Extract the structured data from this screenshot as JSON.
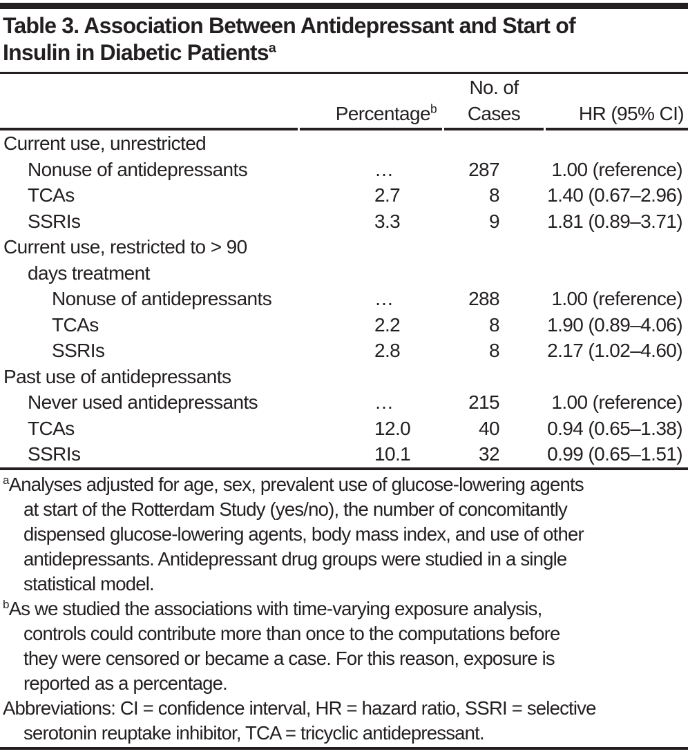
{
  "page": {
    "background": "#ffffff",
    "text_color": "#231f20",
    "rule_color": "#231f20"
  },
  "title": {
    "line1": "Table 3. Association Between Antidepressant and Start of",
    "line2": "Insulin in Diabetic Patients",
    "superscript": "a"
  },
  "table": {
    "header": {
      "percentage_label": "Percentage",
      "percentage_superscript": "b",
      "cases_label_line1": "No. of",
      "cases_label_line2": "Cases",
      "hr_label": "HR (95% CI)"
    },
    "rows": [
      {
        "label": "Current use, unrestricted",
        "indent": 0,
        "percentage": "",
        "cases": "",
        "hr": ""
      },
      {
        "label": "Nonuse of antidepressants",
        "indent": 1,
        "percentage": "…",
        "cases": "287",
        "hr": "1.00 (reference)"
      },
      {
        "label": "TCAs",
        "indent": 1,
        "percentage": "2.7",
        "cases": "8",
        "hr": "1.40 (0.67–2.96)"
      },
      {
        "label": "SSRIs",
        "indent": 1,
        "percentage": "3.3",
        "cases": "9",
        "hr": "1.81 (0.89–3.71)"
      },
      {
        "label": "Current use, restricted to > 90",
        "indent": 0,
        "percentage": "",
        "cases": "",
        "hr": ""
      },
      {
        "label": "days treatment",
        "indent": 1,
        "percentage": "",
        "cases": "",
        "hr": ""
      },
      {
        "label": "Nonuse of antidepressants",
        "indent": 2,
        "percentage": "…",
        "cases": "288",
        "hr": "1.00 (reference)"
      },
      {
        "label": "TCAs",
        "indent": 2,
        "percentage": "2.2",
        "cases": "8",
        "hr": "1.90 (0.89–4.06)"
      },
      {
        "label": "SSRIs",
        "indent": 2,
        "percentage": "2.8",
        "cases": "8",
        "hr": "2.17 (1.02–4.60)"
      },
      {
        "label": "Past use of antidepressants",
        "indent": 0,
        "percentage": "",
        "cases": "",
        "hr": ""
      },
      {
        "label": "Never used antidepressants",
        "indent": 1,
        "percentage": "…",
        "cases": "215",
        "hr": "1.00 (reference)"
      },
      {
        "label": "TCAs",
        "indent": 1,
        "percentage": "12.0",
        "cases": "40",
        "hr": "0.94 (0.65–1.38)"
      },
      {
        "label": "SSRIs",
        "indent": 1,
        "percentage": "10.1",
        "cases": "32",
        "hr": "0.99 (0.65–1.51)"
      }
    ]
  },
  "footnotes": {
    "a": {
      "marker": "a",
      "lines": [
        "Analyses adjusted for age, sex, prevalent use of glucose-lowering agents",
        "at start of the Rotterdam Study (yes/no), the number of concomitantly",
        "dispensed glucose-lowering agents, body mass index, and use of other",
        "antidepressants. Antidepressant drug groups were studied in a single",
        "statistical model."
      ]
    },
    "b": {
      "marker": "b",
      "lines": [
        "As we studied the associations with time-varying exposure analysis,",
        "controls could contribute more than once to the computations before",
        "they were censored or became a case. For this reason, exposure is",
        "reported as a percentage."
      ]
    },
    "abbreviations": {
      "lines": [
        "Abbreviations: CI = confidence interval, HR = hazard ratio, SSRI = selective",
        "serotonin reuptake inhibitor, TCA = tricyclic antidepressant."
      ]
    }
  }
}
